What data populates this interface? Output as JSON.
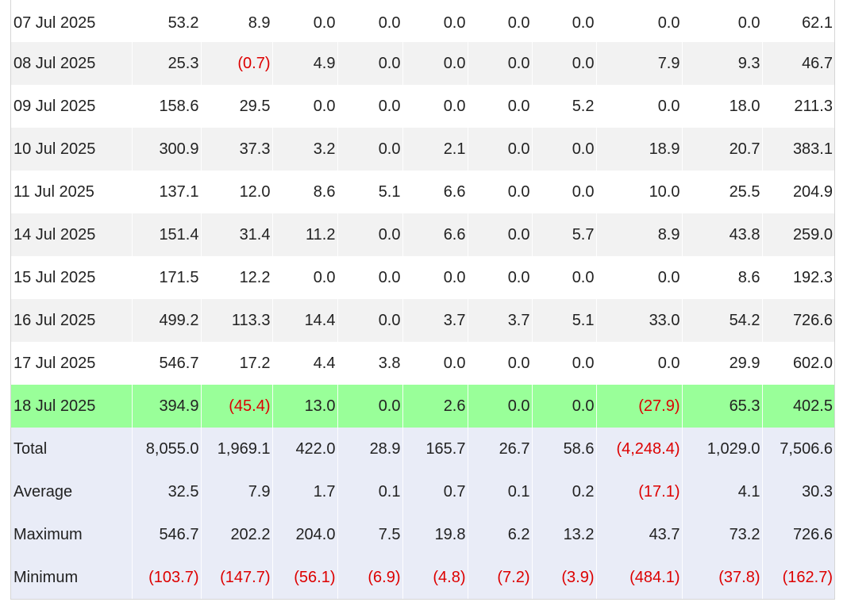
{
  "table": {
    "rows": [
      {
        "date": "07 Jul 2025",
        "values": [
          "53.2",
          "8.9",
          "0.0",
          "0.0",
          "0.0",
          "0.0",
          "0.0",
          "0.0",
          "0.0",
          "62.1"
        ]
      },
      {
        "date": "08 Jul 2025",
        "values": [
          "25.3",
          "(0.7)",
          "4.9",
          "0.0",
          "0.0",
          "0.0",
          "0.0",
          "7.9",
          "9.3",
          "46.7"
        ]
      },
      {
        "date": "09 Jul 2025",
        "values": [
          "158.6",
          "29.5",
          "0.0",
          "0.0",
          "0.0",
          "0.0",
          "5.2",
          "0.0",
          "18.0",
          "211.3"
        ]
      },
      {
        "date": "10 Jul 2025",
        "values": [
          "300.9",
          "37.3",
          "3.2",
          "0.0",
          "2.1",
          "0.0",
          "0.0",
          "18.9",
          "20.7",
          "383.1"
        ]
      },
      {
        "date": "11 Jul 2025",
        "values": [
          "137.1",
          "12.0",
          "8.6",
          "5.1",
          "6.6",
          "0.0",
          "0.0",
          "10.0",
          "25.5",
          "204.9"
        ]
      },
      {
        "date": "14 Jul 2025",
        "values": [
          "151.4",
          "31.4",
          "11.2",
          "0.0",
          "6.6",
          "0.0",
          "5.7",
          "8.9",
          "43.8",
          "259.0"
        ]
      },
      {
        "date": "15 Jul 2025",
        "values": [
          "171.5",
          "12.2",
          "0.0",
          "0.0",
          "0.0",
          "0.0",
          "0.0",
          "0.0",
          "8.6",
          "192.3"
        ]
      },
      {
        "date": "16 Jul 2025",
        "values": [
          "499.2",
          "113.3",
          "14.4",
          "0.0",
          "3.7",
          "3.7",
          "5.1",
          "33.0",
          "54.2",
          "726.6"
        ]
      },
      {
        "date": "17 Jul 2025",
        "values": [
          "546.7",
          "17.2",
          "4.4",
          "3.8",
          "0.0",
          "0.0",
          "0.0",
          "0.0",
          "29.9",
          "602.0"
        ]
      },
      {
        "date": "18 Jul 2025",
        "values": [
          "394.9",
          "(45.4)",
          "13.0",
          "0.0",
          "2.6",
          "0.0",
          "0.0",
          "(27.9)",
          "65.3",
          "402.5"
        ]
      }
    ],
    "summary": [
      {
        "label": "Total",
        "values": [
          "8,055.0",
          "1,969.1",
          "422.0",
          "28.9",
          "165.7",
          "26.7",
          "58.6",
          "(4,248.4)",
          "1,029.0",
          "7,506.6"
        ]
      },
      {
        "label": "Average",
        "values": [
          "32.5",
          "7.9",
          "1.7",
          "0.1",
          "0.7",
          "0.1",
          "0.2",
          "(17.1)",
          "4.1",
          "30.3"
        ]
      },
      {
        "label": "Maximum",
        "values": [
          "546.7",
          "202.2",
          "204.0",
          "7.5",
          "19.8",
          "6.2",
          "13.2",
          "43.7",
          "73.2",
          "726.6"
        ]
      },
      {
        "label": "Minimum",
        "values": [
          "(103.7)",
          "(147.7)",
          "(56.1)",
          "(6.9)",
          "(4.8)",
          "(7.2)",
          "(3.9)",
          "(484.1)",
          "(37.8)",
          "(162.7)"
        ]
      }
    ]
  },
  "colors": {
    "highlight_row": "#99ff99",
    "stripe_row": "#f2f2f2",
    "summary_row": "#e9ecf7",
    "negative_text": "#dd0000"
  }
}
